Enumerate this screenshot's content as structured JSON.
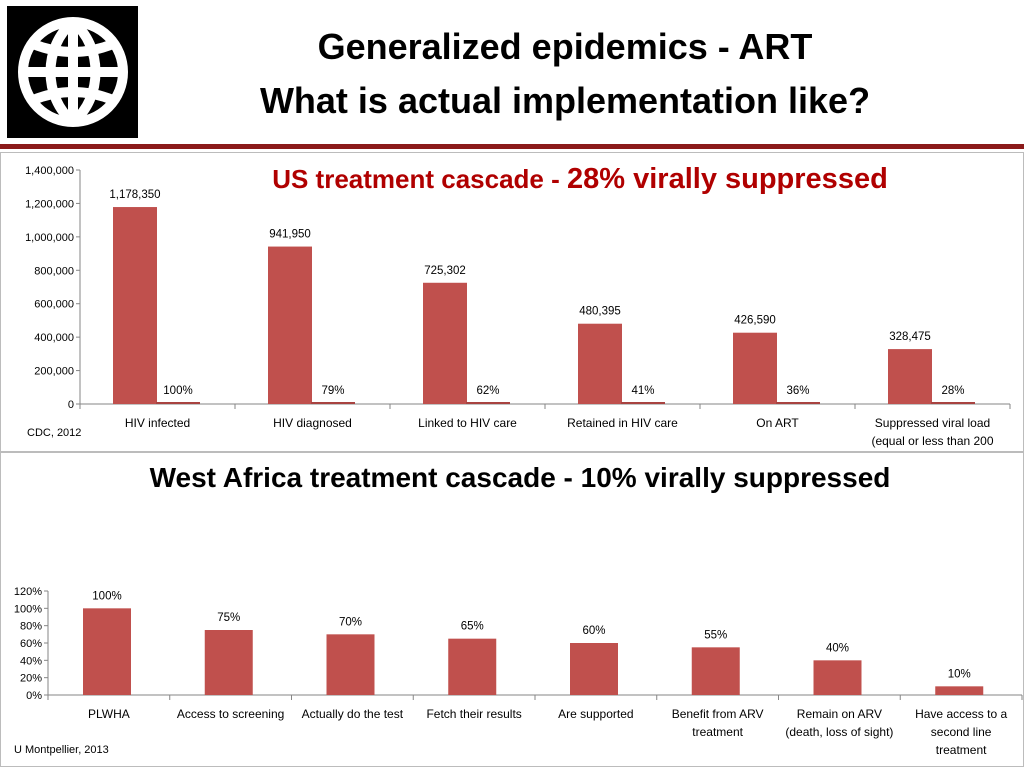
{
  "slide": {
    "title_line1": "Generalized epidemics - ART",
    "title_line2": "What is actual implementation like?"
  },
  "colors": {
    "bar": "#c0504d",
    "bar_dark": "#a84340",
    "rule": "#8b1a1a"
  },
  "logo": {
    "icon": "globe-icon"
  },
  "chart_data": [
    {
      "type": "bar",
      "title_main": "US treatment cascade - ",
      "title_emph": "28% virally suppressed",
      "categories": [
        "HIV infected",
        "HIV diagnosed",
        "Linked to HIV care",
        "Retained in HIV care",
        "On ART",
        "Suppressed viral load (equal or less than 200"
      ],
      "category_lines": [
        [
          "HIV infected"
        ],
        [
          "HIV diagnosed"
        ],
        [
          "Linked to HIV care"
        ],
        [
          "Retained in HIV care"
        ],
        [
          "On ART"
        ],
        [
          "Suppressed viral load",
          "(equal or less than 200"
        ]
      ],
      "values": [
        1178350,
        941950,
        725302,
        480395,
        426590,
        328475
      ],
      "value_labels": [
        "1,178,350",
        "941,950",
        "725,302",
        "480,395",
        "426,590",
        "328,475"
      ],
      "percent_labels": [
        "100%",
        "79%",
        "62%",
        "41%",
        "36%",
        "28%"
      ],
      "ylim": [
        0,
        1400000
      ],
      "yticks": [
        "0",
        "200,000",
        "400,000",
        "600,000",
        "800,000",
        "1,000,000",
        "1,200,000",
        "1,400,000"
      ],
      "source": "CDC, 2012"
    },
    {
      "type": "bar",
      "title": "West Africa treatment cascade - 10% virally suppressed",
      "categories": [
        "PLWHA",
        "Access to screening",
        "Actually do the test",
        "Fetch their results",
        "Are supported",
        "Benefit from ARV treatment",
        "Remain on ARV (death, loss of sight)",
        "Have access to a second line treatment"
      ],
      "category_lines": [
        [
          "PLWHA"
        ],
        [
          "Access to screening"
        ],
        [
          "Actually do the test"
        ],
        [
          "Fetch their results"
        ],
        [
          "Are supported"
        ],
        [
          "Benefit from ARV",
          "treatment"
        ],
        [
          "Remain on ARV",
          "(death, loss of sight)"
        ],
        [
          "Have access to a",
          "second line",
          "treatment"
        ]
      ],
      "values": [
        100,
        75,
        70,
        65,
        60,
        55,
        40,
        10
      ],
      "value_labels": [
        "100%",
        "75%",
        "70%",
        "65%",
        "60%",
        "55%",
        "40%",
        "10%"
      ],
      "ylim": [
        0,
        120
      ],
      "yticks": [
        "0%",
        "20%",
        "40%",
        "60%",
        "80%",
        "100%",
        "120%"
      ],
      "source": "U Montpellier, 2013"
    }
  ]
}
